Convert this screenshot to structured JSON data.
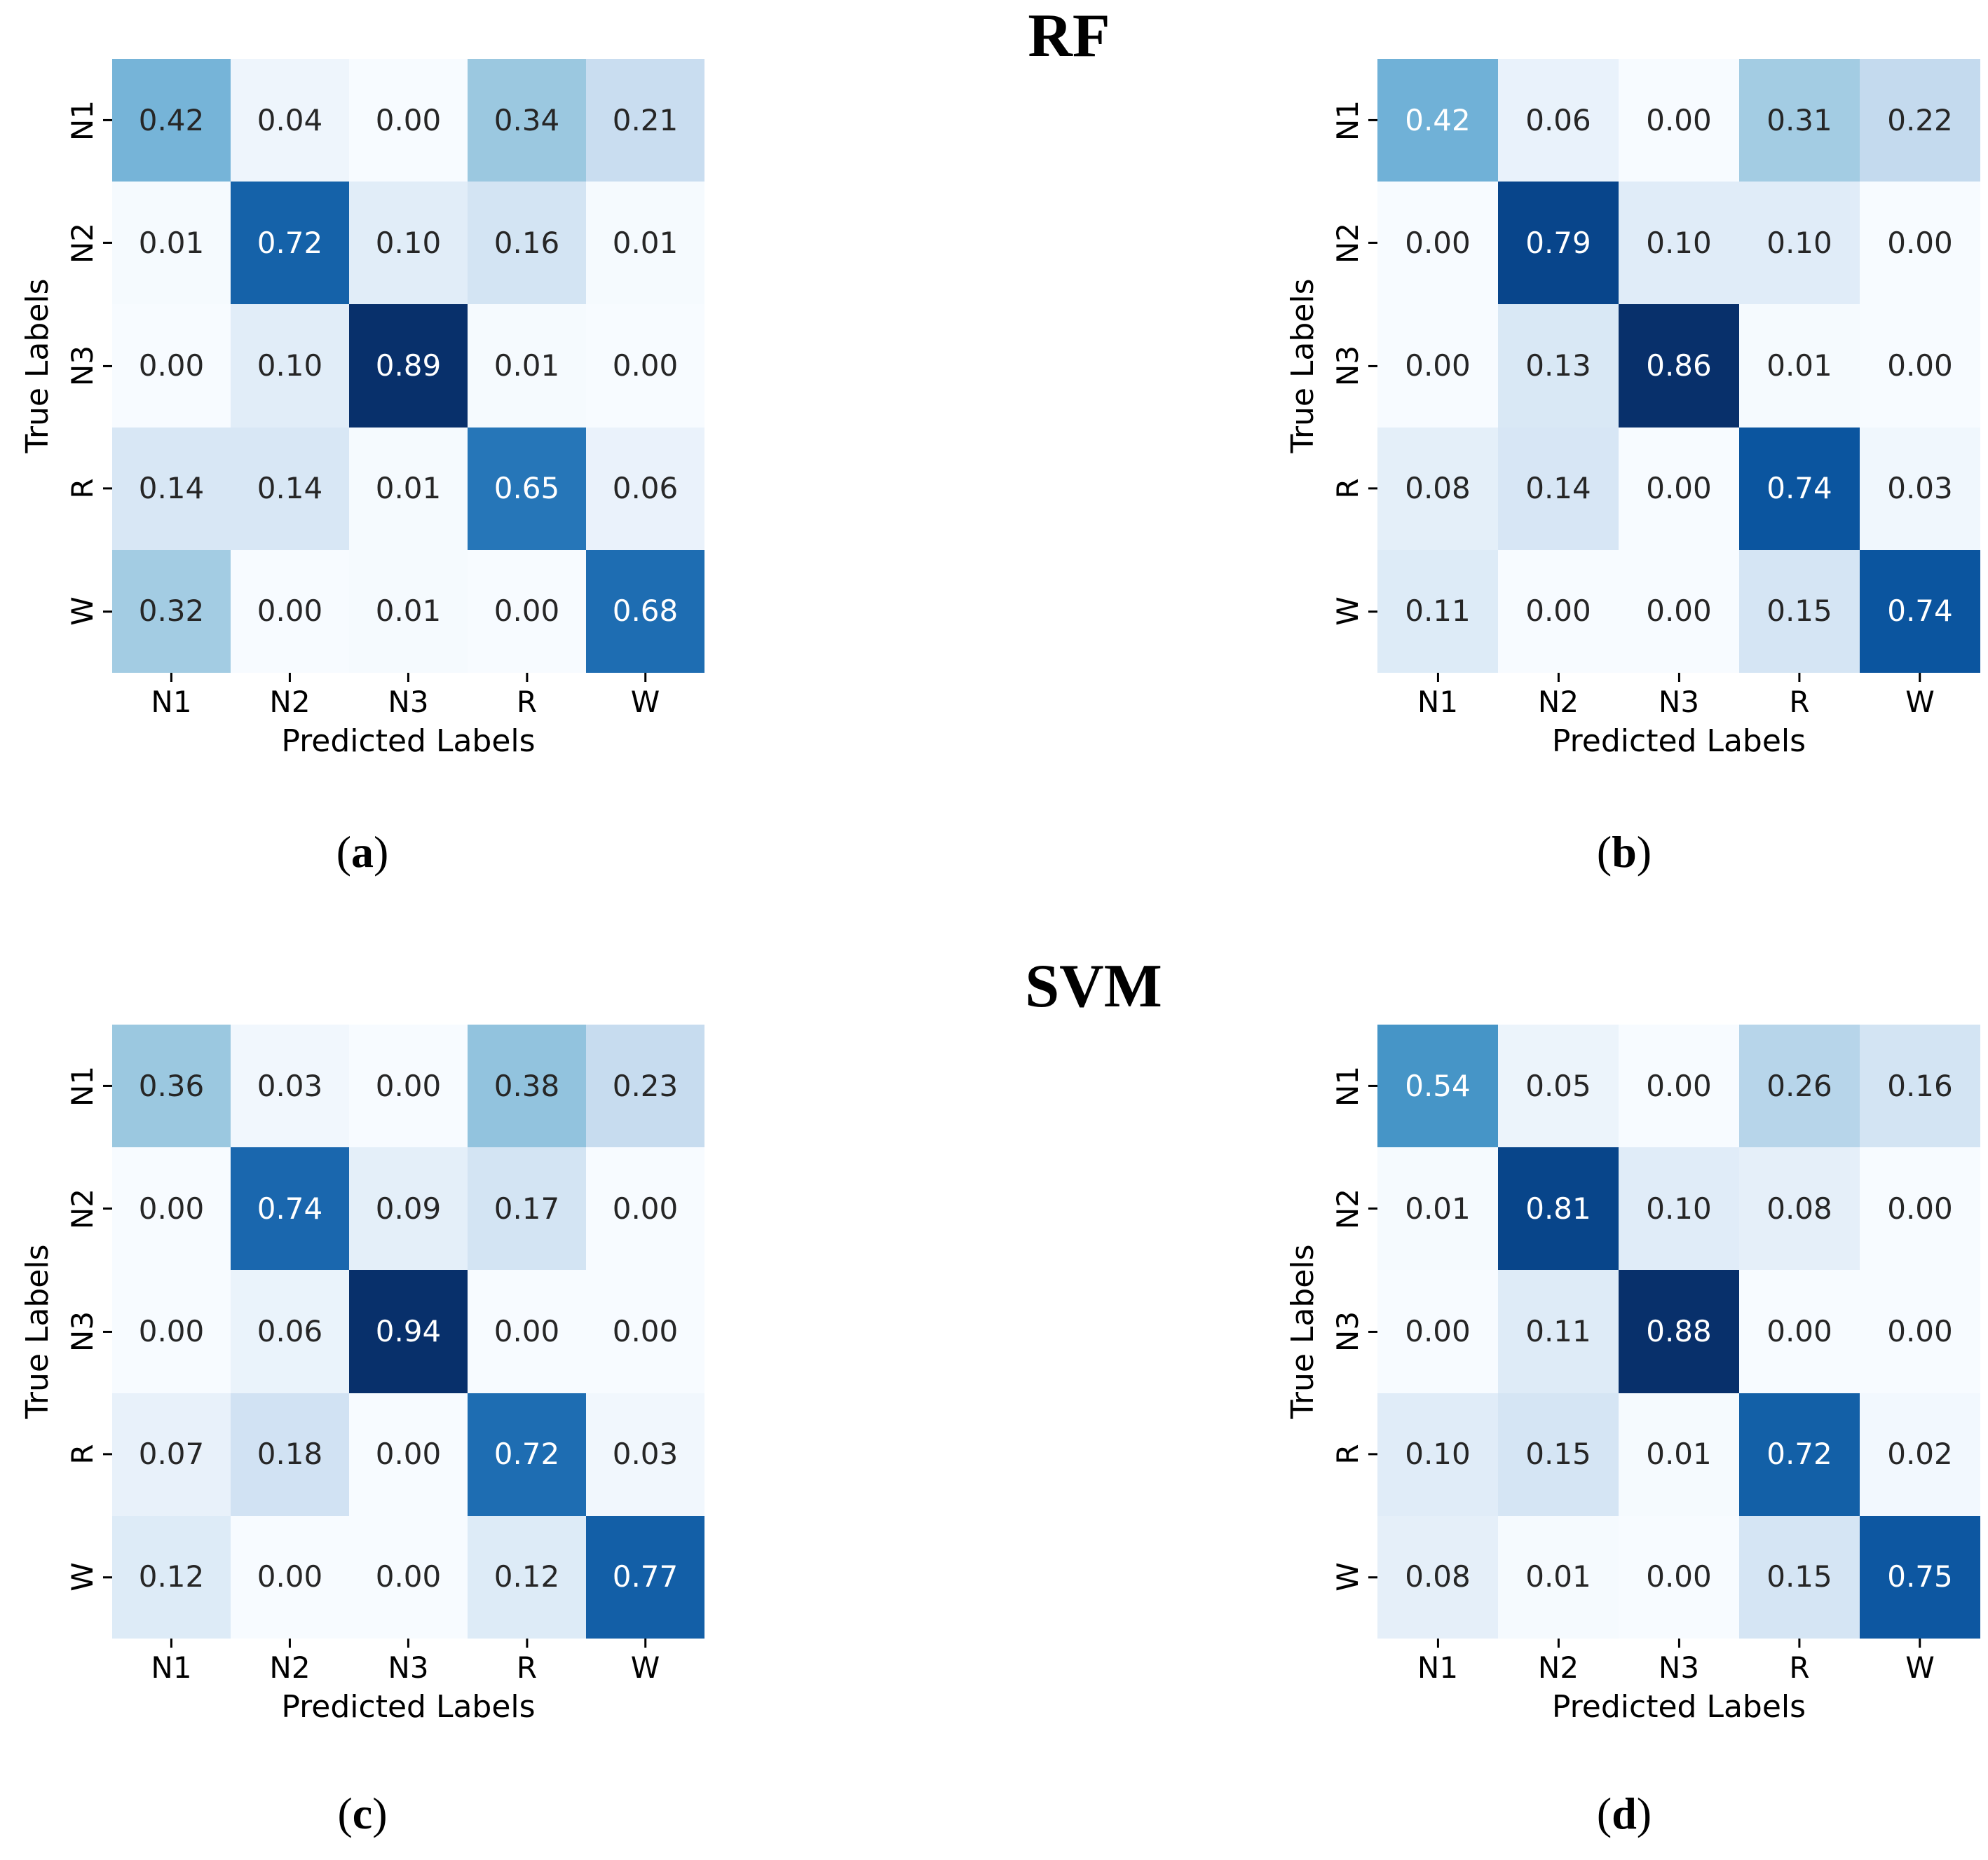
{
  "figure": {
    "groups": [
      {
        "title": "RF"
      },
      {
        "title": "SVM"
      }
    ],
    "captions": [
      {
        "pre": "(",
        "letter": "a",
        "post": ")"
      },
      {
        "pre": "(",
        "letter": "b",
        "post": ")"
      },
      {
        "pre": "(",
        "letter": "c",
        "post": ")"
      },
      {
        "pre": "(",
        "letter": "d",
        "post": ")"
      }
    ],
    "style": {
      "background": "#ffffff",
      "annot_dark": "#262626",
      "annot_light": "#ffffff",
      "tick_color": "#000000",
      "colormap_name": "Blues",
      "colormap_stops": [
        [
          0.0,
          "#f7fbff"
        ],
        [
          0.125,
          "#deebf7"
        ],
        [
          0.25,
          "#c6dbef"
        ],
        [
          0.375,
          "#9ecae1"
        ],
        [
          0.5,
          "#6baed6"
        ],
        [
          0.625,
          "#4292c6"
        ],
        [
          0.75,
          "#2171b5"
        ],
        [
          0.875,
          "#08519c"
        ],
        [
          1.0,
          "#08306b"
        ]
      ],
      "text_luminance_threshold": 0.408
    }
  },
  "chart_data": [
    {
      "type": "heatmap",
      "group": "RF",
      "panel_label": "a",
      "xlabel": "Predicted Labels",
      "ylabel": "True Labels",
      "x_categories": [
        "N1",
        "N2",
        "N3",
        "R",
        "W"
      ],
      "y_categories": [
        "N1",
        "N2",
        "N3",
        "R",
        "W"
      ],
      "values": [
        [
          0.42,
          0.04,
          0.0,
          0.34,
          0.21
        ],
        [
          0.01,
          0.72,
          0.1,
          0.16,
          0.01
        ],
        [
          0.0,
          0.1,
          0.89,
          0.01,
          0.0
        ],
        [
          0.14,
          0.14,
          0.01,
          0.65,
          0.06
        ],
        [
          0.32,
          0.0,
          0.01,
          0.0,
          0.68
        ]
      ],
      "vmin": 0,
      "vmax_mode": "matrix_max",
      "value_format": ".2f",
      "grid": false,
      "legend": false
    },
    {
      "type": "heatmap",
      "group": "RF",
      "panel_label": "b",
      "xlabel": "Predicted Labels",
      "ylabel": "True Labels",
      "x_categories": [
        "N1",
        "N2",
        "N3",
        "R",
        "W"
      ],
      "y_categories": [
        "N1",
        "N2",
        "N3",
        "R",
        "W"
      ],
      "values": [
        [
          0.42,
          0.06,
          0.0,
          0.31,
          0.22
        ],
        [
          0.0,
          0.79,
          0.1,
          0.1,
          0.0
        ],
        [
          0.0,
          0.13,
          0.86,
          0.01,
          0.0
        ],
        [
          0.08,
          0.14,
          0.0,
          0.74,
          0.03
        ],
        [
          0.11,
          0.0,
          0.0,
          0.15,
          0.74
        ]
      ],
      "vmin": 0,
      "vmax_mode": "matrix_max",
      "value_format": ".2f",
      "grid": false,
      "legend": false
    },
    {
      "type": "heatmap",
      "group": "SVM",
      "panel_label": "c",
      "xlabel": "Predicted Labels",
      "ylabel": "True Labels",
      "x_categories": [
        "N1",
        "N2",
        "N3",
        "R",
        "W"
      ],
      "y_categories": [
        "N1",
        "N2",
        "N3",
        "R",
        "W"
      ],
      "values": [
        [
          0.36,
          0.03,
          0.0,
          0.38,
          0.23
        ],
        [
          0.0,
          0.74,
          0.09,
          0.17,
          0.0
        ],
        [
          0.0,
          0.06,
          0.94,
          0.0,
          0.0
        ],
        [
          0.07,
          0.18,
          0.0,
          0.72,
          0.03
        ],
        [
          0.12,
          0.0,
          0.0,
          0.12,
          0.77
        ]
      ],
      "vmin": 0,
      "vmax_mode": "matrix_max",
      "value_format": ".2f",
      "grid": false,
      "legend": false
    },
    {
      "type": "heatmap",
      "group": "SVM",
      "panel_label": "d",
      "xlabel": "Predicted Labels",
      "ylabel": "True Labels",
      "x_categories": [
        "N1",
        "N2",
        "N3",
        "R",
        "W"
      ],
      "y_categories": [
        "N1",
        "N2",
        "N3",
        "R",
        "W"
      ],
      "values": [
        [
          0.54,
          0.05,
          0.0,
          0.26,
          0.16
        ],
        [
          0.01,
          0.81,
          0.1,
          0.08,
          0.0
        ],
        [
          0.0,
          0.11,
          0.88,
          0.0,
          0.0
        ],
        [
          0.1,
          0.15,
          0.01,
          0.72,
          0.02
        ],
        [
          0.08,
          0.01,
          0.0,
          0.15,
          0.75
        ]
      ],
      "vmin": 0,
      "vmax_mode": "matrix_max",
      "value_format": ".2f",
      "grid": false,
      "legend": false
    }
  ]
}
